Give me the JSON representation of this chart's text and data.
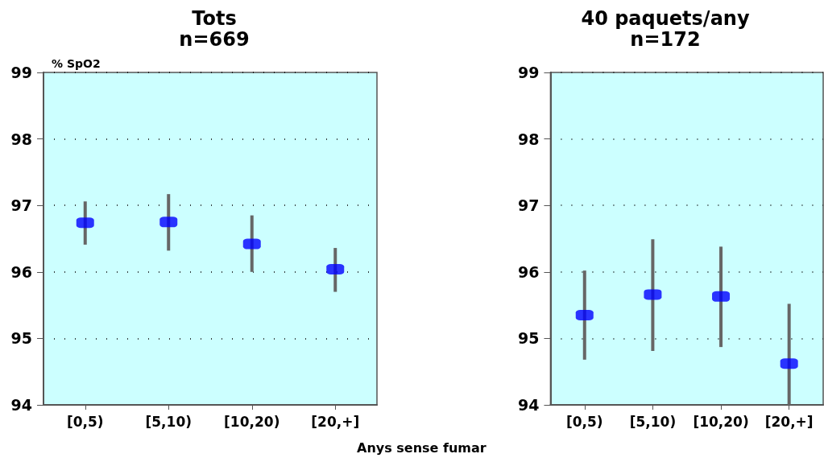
{
  "chart_data": [
    {
      "type": "scatter",
      "title": "Tots",
      "subtitle": "n=669",
      "ylabel": "% SpO2",
      "xlabel": "Anys sense fumar",
      "categories": [
        "[0,5)",
        "[5,10)",
        "[10,20)",
        "[20,+]"
      ],
      "series": [
        {
          "color": "#0000ff",
          "values": [
            96.74,
            96.75,
            96.42,
            96.04
          ],
          "errors": [
            [
              96.41,
              97.06
            ],
            [
              96.32,
              97.17
            ],
            [
              96.0,
              96.85
            ],
            [
              95.7,
              96.36
            ]
          ]
        }
      ],
      "ylim": [
        94,
        99
      ],
      "yticks": [
        94,
        95,
        96,
        97,
        98,
        99
      ],
      "grid": "y"
    },
    {
      "type": "scatter",
      "title": "40 paquets/any",
      "subtitle": "n=172",
      "categories": [
        "[0,5)",
        "[5,10)",
        "[10,20)",
        "[20,+]"
      ],
      "series": [
        {
          "color": "#0000ff",
          "values": [
            95.35,
            95.66,
            95.63,
            94.62
          ],
          "errors": [
            [
              94.68,
              96.02
            ],
            [
              94.81,
              96.49
            ],
            [
              94.87,
              96.38
            ],
            [
              94.0,
              95.52
            ]
          ]
        }
      ],
      "ylim": [
        94,
        99
      ],
      "yticks": [
        94,
        95,
        96,
        97,
        98,
        99
      ],
      "grid": "y"
    }
  ]
}
